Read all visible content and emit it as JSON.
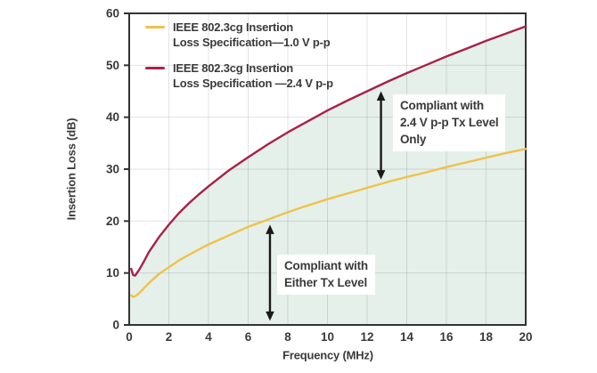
{
  "chart_data": {
    "type": "line",
    "title": "",
    "xlabel": "Frequency (MHz)",
    "ylabel": "Insertion Loss (dB)",
    "xlim": [
      0,
      20
    ],
    "ylim": [
      0,
      60
    ],
    "x_ticks": [
      0,
      2,
      4,
      6,
      8,
      10,
      12,
      14,
      16,
      18,
      20
    ],
    "y_ticks": [
      0,
      10,
      20,
      30,
      40,
      50,
      60
    ],
    "grid": true,
    "legend_position": "top-left-inside",
    "colors": {
      "fill_below_2p4": "#e5f0ea",
      "grid": "rgba(0,0,0,0.11)",
      "axis": "#333333",
      "text": "#3a3a3a",
      "arrow": "#1a1a1a"
    },
    "series": [
      {
        "name": "IEEE 802.3cg Insertion\nLoss Specification—1.0 V p-p",
        "color": "#efc24b",
        "x": [
          0.1,
          0.2,
          0.3,
          0.5,
          0.75,
          1,
          1.5,
          2,
          2.5,
          3,
          3.5,
          4,
          5,
          6,
          7,
          8,
          9,
          10,
          11,
          12,
          13,
          14,
          15,
          16,
          17,
          18,
          19,
          20
        ],
        "y": [
          5.7,
          5.4,
          5.5,
          6.1,
          7.1,
          8.1,
          9.8,
          11.1,
          12.4,
          13.5,
          14.5,
          15.5,
          17.2,
          18.9,
          20.3,
          21.7,
          23.0,
          24.2,
          25.3,
          26.4,
          27.5,
          28.5,
          29.4,
          30.4,
          31.3,
          32.2,
          33.1,
          33.9
        ]
      },
      {
        "name": "IEEE 802.3cg Insertion\nLoss Specification —2.4 V p-p",
        "color": "#a8214a",
        "fill_below": true,
        "x": [
          0.1,
          0.2,
          0.3,
          0.5,
          0.75,
          1,
          1.5,
          2,
          2.5,
          3,
          3.5,
          4,
          5,
          6,
          7,
          8,
          9,
          10,
          11,
          12,
          13,
          14,
          15,
          16,
          17,
          18,
          19,
          20
        ],
        "y": [
          10.8,
          9.6,
          9.5,
          10.6,
          12.3,
          14.1,
          16.9,
          19.3,
          21.5,
          23.4,
          25.1,
          26.7,
          29.7,
          32.3,
          34.8,
          37.1,
          39.2,
          41.3,
          43.2,
          45.0,
          46.8,
          48.5,
          50.1,
          51.7,
          53.2,
          54.7,
          56.1,
          57.5
        ]
      }
    ],
    "annotations": [
      {
        "label": "Compliant with\n2.4 V p-p Tx Level\nOnly",
        "arrow_x_mhz": 12.7,
        "arrow_from_db": 28.0,
        "arrow_to_db": 45.0
      },
      {
        "label": "Compliant with\nEither Tx Level",
        "arrow_x_mhz": 7.1,
        "arrow_from_db": 0.8,
        "arrow_to_db": 19.3
      }
    ]
  }
}
